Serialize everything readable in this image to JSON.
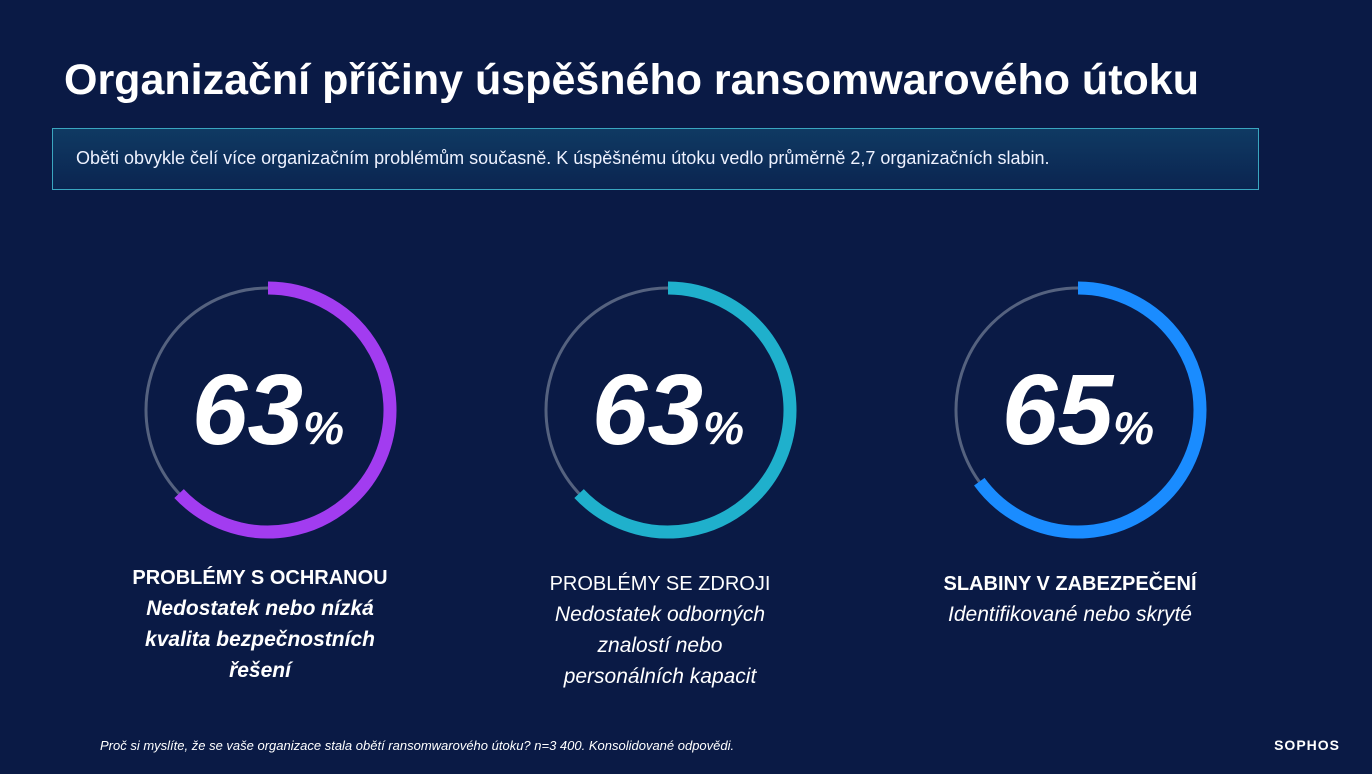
{
  "header": {
    "title": "Organizační příčiny úspěšného ransomwarového útoku",
    "subtitle": "Oběti obvykle čelí více organizačním problémům současně. K úspěšnému útoku vedlo průměrně 2,7 organizačních slabin."
  },
  "chart_data": {
    "type": "ring",
    "unit": "%",
    "ylim": [
      0,
      100
    ],
    "categories": [
      "PROBLÉMY S OCHRANOU",
      "PROBLÉMY SE ZDROJI",
      "SLABINY V ZABEZPEČENÍ"
    ],
    "descriptions": [
      [
        "Nedostatek nebo nízká",
        "kvalita bezpečnostních",
        "řešení"
      ],
      [
        "Nedostatek odborných",
        "znalostí nebo",
        "personálních kapacit"
      ],
      [
        "Identifikované nebo skryté"
      ]
    ],
    "values": [
      63,
      63,
      65
    ],
    "colors": [
      "#a23cf0",
      "#1fb0cc",
      "#1a8cff"
    ]
  },
  "footer": {
    "note": "Proč si myslíte, že se vaše organizace stala obětí ransomwarového útoku? n=3 400. Konsolidované odpovědi.",
    "logo": "SOPHOS"
  }
}
